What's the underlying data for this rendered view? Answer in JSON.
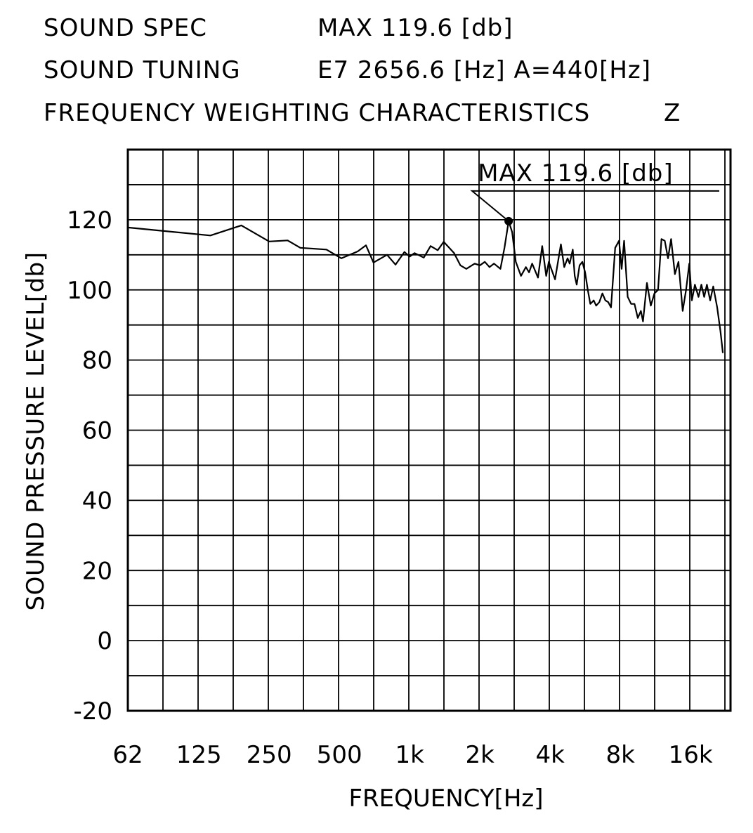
{
  "header": {
    "rows": [
      {
        "label": "SOUND SPEC",
        "value": "MAX 119.6 [db]"
      },
      {
        "label": "SOUND TUNING",
        "value": "E7 2656.6 [Hz] A=440[Hz]"
      },
      {
        "label": "FREQUENCY WEIGHTING CHARACTERISTICS",
        "value": "Z"
      }
    ]
  },
  "chart_data": {
    "type": "line",
    "title": "",
    "xlabel": "FREQUENCY[Hz]",
    "ylabel": "SOUND PRESSURE LEVEL[db]",
    "x_scale": "log2",
    "xlim": [
      62,
      22000
    ],
    "ylim": [
      -20,
      140
    ],
    "x_ticks": [
      {
        "value": 62,
        "label": "62"
      },
      {
        "value": 125,
        "label": "125"
      },
      {
        "value": 250,
        "label": "250"
      },
      {
        "value": 500,
        "label": "500"
      },
      {
        "value": 1000,
        "label": "1k"
      },
      {
        "value": 2000,
        "label": "2k"
      },
      {
        "value": 4000,
        "label": "4k"
      },
      {
        "value": 8000,
        "label": "8k"
      },
      {
        "value": 16000,
        "label": "16k"
      }
    ],
    "y_ticks": [
      {
        "value": 120,
        "label": "120"
      },
      {
        "value": 100,
        "label": "100"
      },
      {
        "value": 80,
        "label": "80"
      },
      {
        "value": 60,
        "label": "60"
      },
      {
        "value": 40,
        "label": "40"
      },
      {
        "value": 20,
        "label": "20"
      },
      {
        "value": 0,
        "label": "0"
      },
      {
        "value": -20,
        "label": "-20"
      }
    ],
    "grid": true,
    "annotation": {
      "text": "MAX 119.6 [db]",
      "x": 2656.6,
      "y": 119.6
    },
    "series": [
      {
        "x": [
          62,
          140,
          190,
          250,
          300,
          340,
          440,
          510,
          600,
          650,
          700,
          800,
          870,
          950,
          1000,
          1050,
          1150,
          1230,
          1320,
          1400,
          1550,
          1650,
          1750,
          1900,
          2000,
          2100,
          2200,
          2300,
          2450,
          2550,
          2656.6,
          2750,
          2850,
          3000,
          3150,
          3250,
          3350,
          3550,
          3700,
          3850,
          3950,
          4200,
          4450,
          4600,
          4750,
          4850,
          5000,
          5100,
          5200,
          5350,
          5500,
          5650,
          5800,
          5950,
          6150,
          6300,
          6500,
          6700,
          6900,
          7100,
          7300,
          7600,
          7900,
          8100,
          8300,
          8600,
          8900,
          9200,
          9500,
          9800,
          10000,
          10400,
          10800,
          11200,
          11600,
          12000,
          12400,
          12800,
          13200,
          13700,
          14200,
          14800,
          15300,
          15800,
          16200,
          16700,
          17300,
          17800,
          18300,
          18800,
          19400,
          20000,
          20800,
          21500,
          22000
        ],
        "y": [
          117.8,
          115.5,
          118.4,
          113.8,
          114.1,
          112.0,
          111.5,
          109.0,
          111.0,
          112.7,
          107.8,
          110.0,
          107.2,
          110.8,
          109.5,
          110.5,
          109.2,
          112.5,
          111.3,
          113.7,
          110.5,
          107.0,
          106.0,
          107.5,
          107.0,
          108.0,
          106.5,
          107.5,
          106.0,
          112.0,
          119.6,
          116.5,
          108.0,
          104.0,
          106.5,
          105.0,
          107.5,
          103.5,
          112.5,
          104.0,
          108.0,
          103.0,
          113.0,
          106.5,
          109.0,
          107.5,
          111.5,
          104.0,
          101.5,
          107.0,
          108.0,
          105.0,
          100.0,
          96.0,
          97.0,
          95.5,
          96.5,
          99.0,
          97.0,
          96.5,
          95.0,
          112.0,
          114.0,
          106.0,
          114.0,
          98.0,
          96.0,
          96.0,
          92.0,
          94.0,
          91.0,
          102.0,
          95.5,
          99.0,
          100.0,
          114.5,
          114.0,
          109.0,
          114.5,
          104.5,
          108.0,
          94.0,
          100.0,
          107.5,
          97.0,
          101.5,
          98.0,
          101.5,
          98.0,
          101.5,
          97.0,
          101.0,
          95.0,
          88.0,
          82.0
        ]
      }
    ]
  }
}
